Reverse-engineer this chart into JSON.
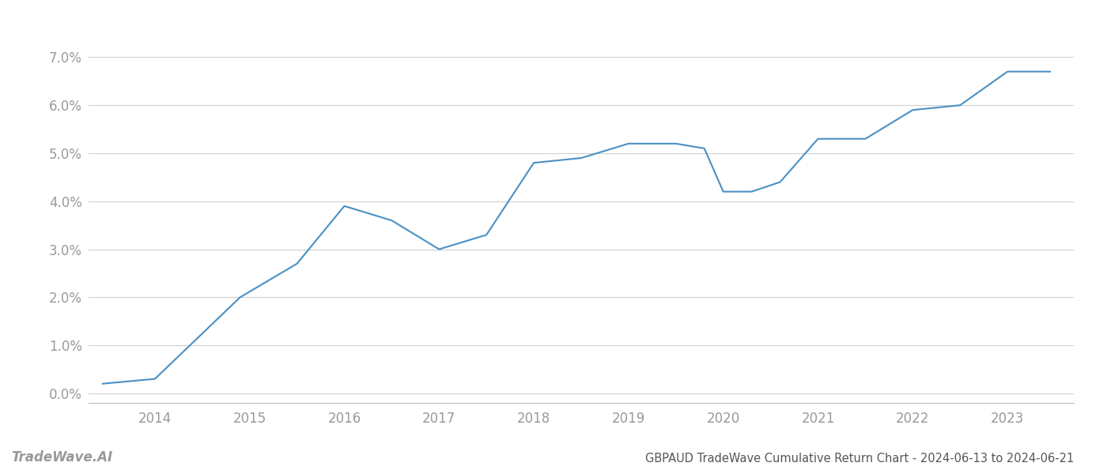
{
  "x": [
    2013.45,
    2014.0,
    2014.9,
    2015.5,
    2016.0,
    2016.5,
    2017.0,
    2017.5,
    2018.0,
    2018.5,
    2019.0,
    2019.5,
    2019.8,
    2020.0,
    2020.3,
    2020.6,
    2021.0,
    2021.5,
    2022.0,
    2022.5,
    2023.0,
    2023.45
  ],
  "y": [
    0.002,
    0.003,
    0.02,
    0.027,
    0.039,
    0.036,
    0.03,
    0.033,
    0.048,
    0.049,
    0.052,
    0.052,
    0.051,
    0.042,
    0.042,
    0.044,
    0.053,
    0.053,
    0.059,
    0.06,
    0.067,
    0.067
  ],
  "line_color": "#4a90c4",
  "line_width": 1.5,
  "title": "GBPAUD TradeWave Cumulative Return Chart - 2024-06-13 to 2024-06-21",
  "watermark": "TradeWave.AI",
  "xlim": [
    2013.3,
    2023.7
  ],
  "ylim": [
    -0.002,
    0.075
  ],
  "yticks": [
    0.0,
    0.01,
    0.02,
    0.03,
    0.04,
    0.05,
    0.06,
    0.07
  ],
  "ytick_labels": [
    "0.0%",
    "1.0%",
    "2.0%",
    "3.0%",
    "4.0%",
    "5.0%",
    "6.0%",
    "7.0%"
  ],
  "xticks": [
    2014,
    2015,
    2016,
    2017,
    2018,
    2019,
    2020,
    2021,
    2022,
    2023
  ],
  "background_color": "#ffffff",
  "grid_color": "#d0d0d0",
  "tick_label_color": "#999999",
  "title_color": "#555555",
  "watermark_color": "#999999",
  "title_fontsize": 10.5,
  "tick_fontsize": 12,
  "watermark_fontsize": 12
}
